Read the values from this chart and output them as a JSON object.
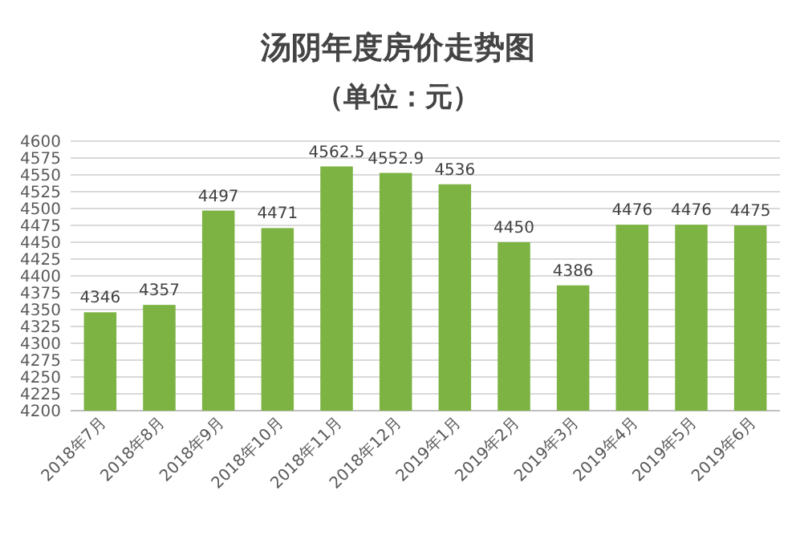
{
  "chart_data": {
    "type": "bar",
    "title": "汤阴年度房价走势图",
    "subtitle": "（单位：元）",
    "categories": [
      "2018年7月",
      "2018年8月",
      "2018年9月",
      "2018年10月",
      "2018年11月",
      "2018年12月",
      "2019年1月",
      "2019年2月",
      "2019年3月",
      "2019年4月",
      "2019年5月",
      "2019年6月"
    ],
    "values": [
      4346,
      4357,
      4497,
      4471,
      4562.5,
      4552.9,
      4536,
      4450,
      4386,
      4476,
      4476,
      4475
    ],
    "color": "#7cb342",
    "ylim": [
      4200,
      4600
    ],
    "yticks": [
      4200,
      4225,
      4250,
      4275,
      4300,
      4325,
      4350,
      4375,
      4400,
      4425,
      4450,
      4475,
      4500,
      4525,
      4550,
      4575,
      4600
    ],
    "grid": "y",
    "data_labels": true
  }
}
